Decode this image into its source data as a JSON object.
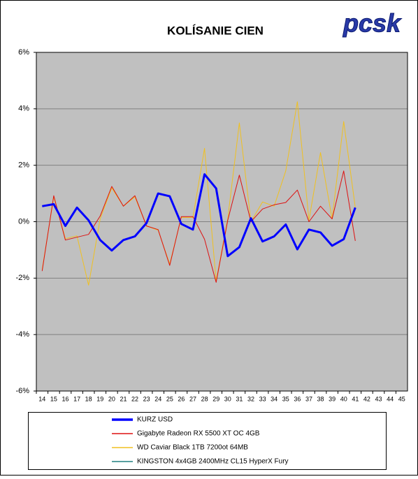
{
  "chart_data": {
    "type": "line",
    "title": "KOLÍSANIE CIEN",
    "logo": "pcsk",
    "categories": [
      "14",
      "15",
      "16",
      "17",
      "18",
      "19",
      "20",
      "21",
      "22",
      "23",
      "24",
      "25",
      "26",
      "27",
      "28",
      "29",
      "30",
      "31",
      "32",
      "33",
      "34",
      "35",
      "36",
      "37",
      "38",
      "39",
      "40",
      "41",
      "42",
      "43",
      "44",
      "45"
    ],
    "series": [
      {
        "name": "KURZ USD",
        "color": "#0000ff",
        "width": 3,
        "values": [
          0.55,
          0.62,
          -0.15,
          0.5,
          0.05,
          -0.65,
          -1.02,
          -0.65,
          -0.52,
          -0.05,
          1.0,
          0.9,
          -0.08,
          -0.28,
          1.68,
          1.18,
          -1.22,
          -0.9,
          0.12,
          -0.7,
          -0.52,
          -0.1,
          -0.98,
          -0.28,
          -0.38,
          -0.85,
          -0.62,
          0.5,
          null,
          null,
          null,
          null
        ]
      },
      {
        "name": "Gigabyte Radeon RX 5500 XT OC 4GB",
        "color": "#dd1111",
        "width": 1,
        "values": [
          -1.75,
          0.92,
          -0.65,
          -0.55,
          -0.45,
          0.2,
          1.25,
          0.55,
          0.92,
          -0.15,
          -0.28,
          -1.55,
          0.18,
          0.18,
          -0.62,
          -2.15,
          0.05,
          1.65,
          0.0,
          0.45,
          0.6,
          0.68,
          1.12,
          0.0,
          0.55,
          0.1,
          1.8,
          -0.68,
          null,
          null,
          null,
          null
        ]
      },
      {
        "name": "WD Caviar Black 1TB 7200ot 64MB",
        "color": "#f0c020",
        "width": 1,
        "values": [
          -1.7,
          0.88,
          -0.6,
          -0.5,
          -2.25,
          0.1,
          1.2,
          0.55,
          0.88,
          -0.15,
          -0.3,
          -1.5,
          0.15,
          0.15,
          2.6,
          -2.1,
          0.1,
          3.5,
          0.0,
          0.7,
          0.55,
          1.8,
          4.25,
          0.05,
          2.45,
          0.1,
          3.55,
          0.5,
          null,
          null,
          null,
          null
        ]
      },
      {
        "name": "KINGSTON 4x4GB 2400MHz CL15 HyperX Fury",
        "color": "#208080",
        "width": 1,
        "values": [
          null,
          null,
          null,
          null,
          null,
          null,
          null,
          null,
          null,
          null,
          null,
          null,
          null,
          null,
          null,
          null,
          null,
          null,
          null,
          null,
          null,
          null,
          null,
          null,
          null,
          null,
          null,
          null,
          null,
          null,
          null,
          null
        ]
      }
    ],
    "ylim": [
      -6,
      6
    ],
    "yticks": [
      {
        "value": -6,
        "label": "-6%"
      },
      {
        "value": -4,
        "label": "-4%"
      },
      {
        "value": -2,
        "label": "-2%"
      },
      {
        "value": 0,
        "label": "0%"
      },
      {
        "value": 2,
        "label": "2%"
      },
      {
        "value": 4,
        "label": "4%"
      },
      {
        "value": 6,
        "label": "6%"
      }
    ],
    "grid": true,
    "legend": "bottom"
  }
}
